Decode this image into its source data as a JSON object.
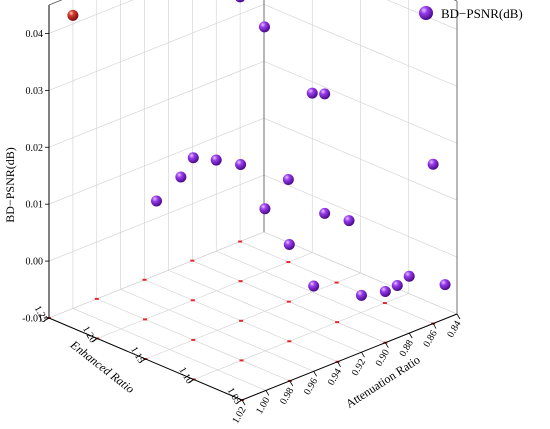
{
  "chart_data": {
    "type": "scatter3d",
    "title": "",
    "legend": {
      "label": "BD−PSNR(dB)",
      "placement": "top-right"
    },
    "xlabel": "Attenuation Ratio",
    "ylabel": "Enhanced Ratio",
    "zlabel": "BD−PSNR(dB)",
    "x_ticks": [
      "0.84",
      "0.86",
      "0.88",
      "0.90",
      "0.92",
      "0.94",
      "0.96",
      "0.98",
      "1.00",
      "1.02"
    ],
    "y_ticks": [
      "1.25",
      "1.20",
      "1.15",
      "1.10",
      "1.05"
    ],
    "z_ticks": [
      "-0.01",
      "0.00",
      "0.01",
      "0.02",
      "0.03",
      "0.04"
    ],
    "grid": true,
    "colors": {
      "point": "#7a1fd0",
      "highlight": "#c0282d",
      "projection": "#e8242a",
      "grid": "#d0d0d0",
      "axis": "#000000"
    },
    "points": [
      {
        "x": 1.0,
        "y": 1.25,
        "z": 0.0415,
        "highlight": true
      },
      {
        "x": 0.98,
        "y": 1.15,
        "z": 0.022
      },
      {
        "x": 0.96,
        "y": 1.05,
        "z": 0.005
      },
      {
        "x": 0.95,
        "y": 1.2,
        "z": 0.0125
      },
      {
        "x": 0.93,
        "y": 1.25,
        "z": 0.003
      },
      {
        "x": 0.94,
        "y": 1.1,
        "z": 0.007
      },
      {
        "x": 0.92,
        "y": 1.15,
        "z": 0.008
      },
      {
        "x": 0.9,
        "y": 1.2,
        "z": 0.0105
      },
      {
        "x": 0.89,
        "y": 1.1,
        "z": 0.007
      },
      {
        "x": 0.88,
        "y": 1.25,
        "z": 0.006
      },
      {
        "x": 0.87,
        "y": 1.15,
        "z": 0.003
      },
      {
        "x": 0.86,
        "y": 1.2,
        "z": 0.0045
      },
      {
        "x": 0.92,
        "y": 1.05,
        "z": 0.0
      },
      {
        "x": 0.9,
        "y": 1.05,
        "z": -0.001
      },
      {
        "x": 0.89,
        "y": 1.05,
        "z": -0.0008
      },
      {
        "x": 0.88,
        "y": 1.05,
        "z": 0.0
      },
      {
        "x": 0.85,
        "y": 1.05,
        "z": -0.004
      },
      {
        "x": 0.88,
        "y": 1.2,
        "z": 0.033
      },
      {
        "x": 0.86,
        "y": 1.25,
        "z": 0.033
      },
      {
        "x": 0.87,
        "y": 1.15,
        "z": 0.024
      },
      {
        "x": 0.86,
        "y": 1.05,
        "z": 0.018
      },
      {
        "x": 0.84,
        "y": 1.2,
        "z": 0.018
      }
    ]
  }
}
